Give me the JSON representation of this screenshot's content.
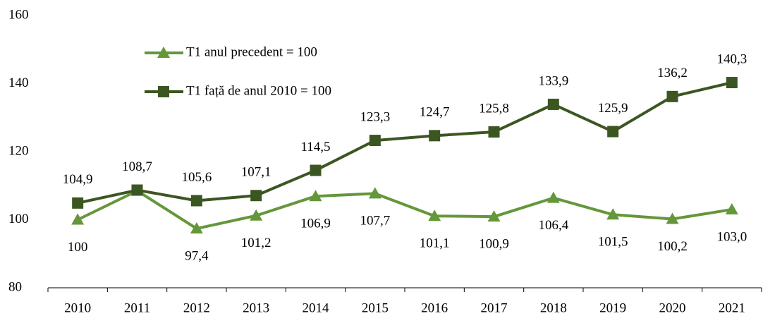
{
  "chart_data": {
    "type": "line",
    "categories": [
      "2010",
      "2011",
      "2012",
      "2013",
      "2014",
      "2015",
      "2016",
      "2017",
      "2018",
      "2019",
      "2020",
      "2021"
    ],
    "series": [
      {
        "name": "T1 anul precedent = 100",
        "color": "#64973a",
        "marker": "triangle",
        "values": [
          100,
          108.5,
          97.4,
          101.2,
          106.9,
          107.7,
          101.1,
          100.9,
          106.4,
          101.5,
          100.2,
          103.0
        ],
        "value_labels": [
          "100",
          null,
          "97,4",
          "101,2",
          "106,9",
          "107,7",
          "101,1",
          "100,9",
          "106,4",
          "101,5",
          "100,2",
          "103,0"
        ]
      },
      {
        "name": "T1 față de anul 2010 = 100",
        "color": "#3c5622",
        "marker": "square",
        "values": [
          104.9,
          108.7,
          105.6,
          107.1,
          114.5,
          123.3,
          124.7,
          125.8,
          133.9,
          125.9,
          136.2,
          140.3
        ],
        "value_labels": [
          "104,9",
          "108,7",
          "105,6",
          "107,1",
          "114,5",
          "123,3",
          "124,7",
          "125,8",
          "133,9",
          "125,9",
          "136,2",
          "140,3"
        ]
      }
    ],
    "ylim": [
      80,
      160
    ],
    "yticks": [
      80,
      100,
      120,
      140,
      160
    ],
    "grid": false,
    "legend": "top-left"
  }
}
